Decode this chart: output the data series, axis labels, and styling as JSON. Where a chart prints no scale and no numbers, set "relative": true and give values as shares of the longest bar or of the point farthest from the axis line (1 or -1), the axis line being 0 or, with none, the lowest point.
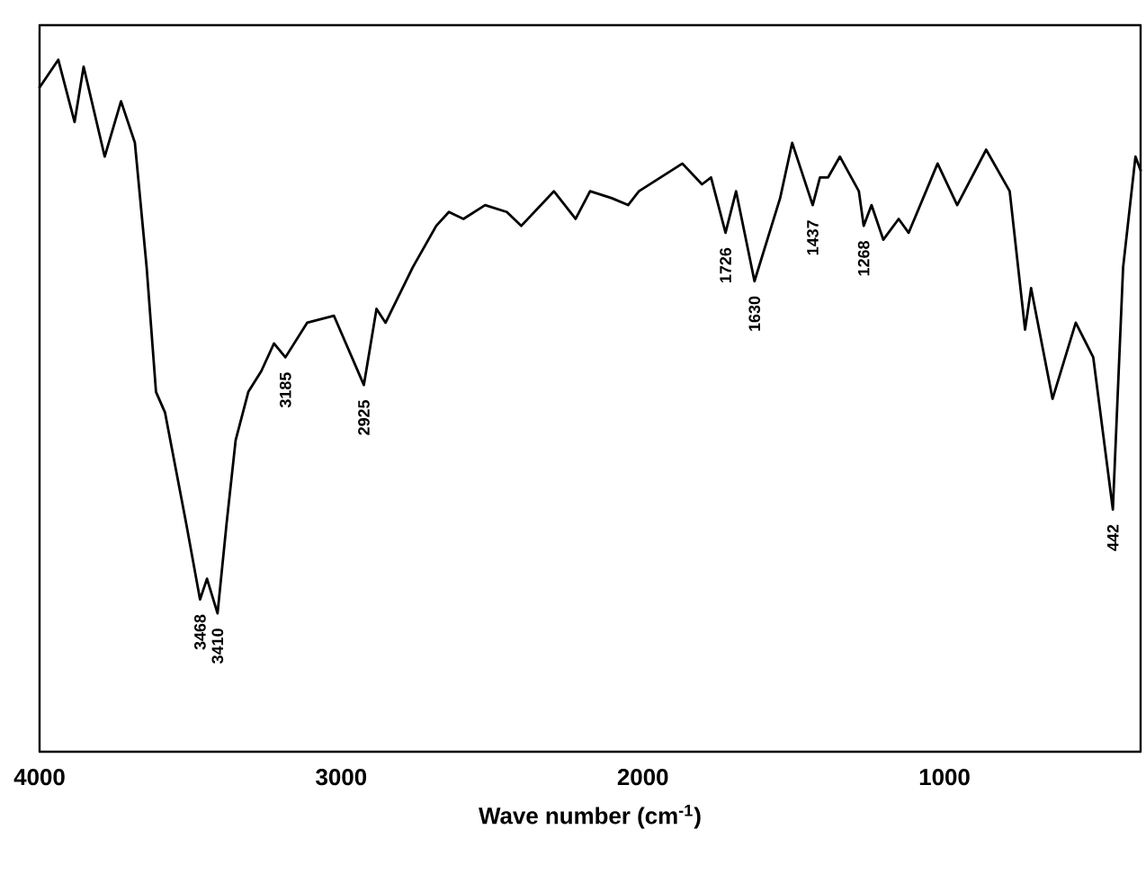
{
  "chart_data": {
    "type": "line",
    "relative": true,
    "xlabel": "Wave number (cm$^{-1}$)",
    "xlim": [
      4000,
      350
    ],
    "xticks": [
      4000,
      3000,
      2000,
      1000
    ],
    "color": "#000000",
    "x": [
      4000,
      3938,
      3884,
      3854,
      3784,
      3730,
      3684,
      3645,
      3614,
      3584,
      3514,
      3468,
      3445,
      3410,
      3380,
      3350,
      3308,
      3265,
      3223,
      3185,
      3113,
      3024,
      2925,
      2883,
      2853,
      2763,
      2685,
      2643,
      2595,
      2523,
      2451,
      2403,
      2295,
      2223,
      2175,
      2103,
      2049,
      2013,
      1869,
      1804,
      1774,
      1726,
      1691,
      1630,
      1545,
      1505,
      1437,
      1413,
      1386,
      1347,
      1284,
      1268,
      1242,
      1203,
      1152,
      1119,
      1023,
      958,
      862,
      784,
      733,
      713,
      642,
      565,
      507,
      442,
      408,
      367,
      350
    ],
    "values": [
      0.96,
      1.0,
      0.91,
      0.99,
      0.86,
      0.94,
      0.88,
      0.7,
      0.52,
      0.49,
      0.33,
      0.22,
      0.25,
      0.2,
      0.33,
      0.45,
      0.52,
      0.55,
      0.59,
      0.57,
      0.62,
      0.63,
      0.53,
      0.64,
      0.62,
      0.7,
      0.76,
      0.78,
      0.77,
      0.79,
      0.78,
      0.76,
      0.81,
      0.77,
      0.81,
      0.8,
      0.79,
      0.81,
      0.85,
      0.82,
      0.83,
      0.75,
      0.81,
      0.68,
      0.8,
      0.88,
      0.79,
      0.83,
      0.83,
      0.86,
      0.81,
      0.76,
      0.79,
      0.74,
      0.77,
      0.75,
      0.85,
      0.79,
      0.87,
      0.81,
      0.61,
      0.67,
      0.51,
      0.62,
      0.57,
      0.35,
      0.7,
      0.86,
      0.84
    ],
    "annotations": [
      {
        "text": "3468",
        "x": 3468,
        "y": 0.22
      },
      {
        "text": "3410",
        "x": 3410,
        "y": 0.2
      },
      {
        "text": "3185",
        "x": 3185,
        "y": 0.57
      },
      {
        "text": "2925",
        "x": 2925,
        "y": 0.53
      },
      {
        "text": "1726",
        "x": 1726,
        "y": 0.75
      },
      {
        "text": "1630",
        "x": 1630,
        "y": 0.68
      },
      {
        "text": "1437",
        "x": 1437,
        "y": 0.79
      },
      {
        "text": "1268",
        "x": 1268,
        "y": 0.76
      },
      {
        "text": "442",
        "x": 442,
        "y": 0.35
      }
    ]
  }
}
